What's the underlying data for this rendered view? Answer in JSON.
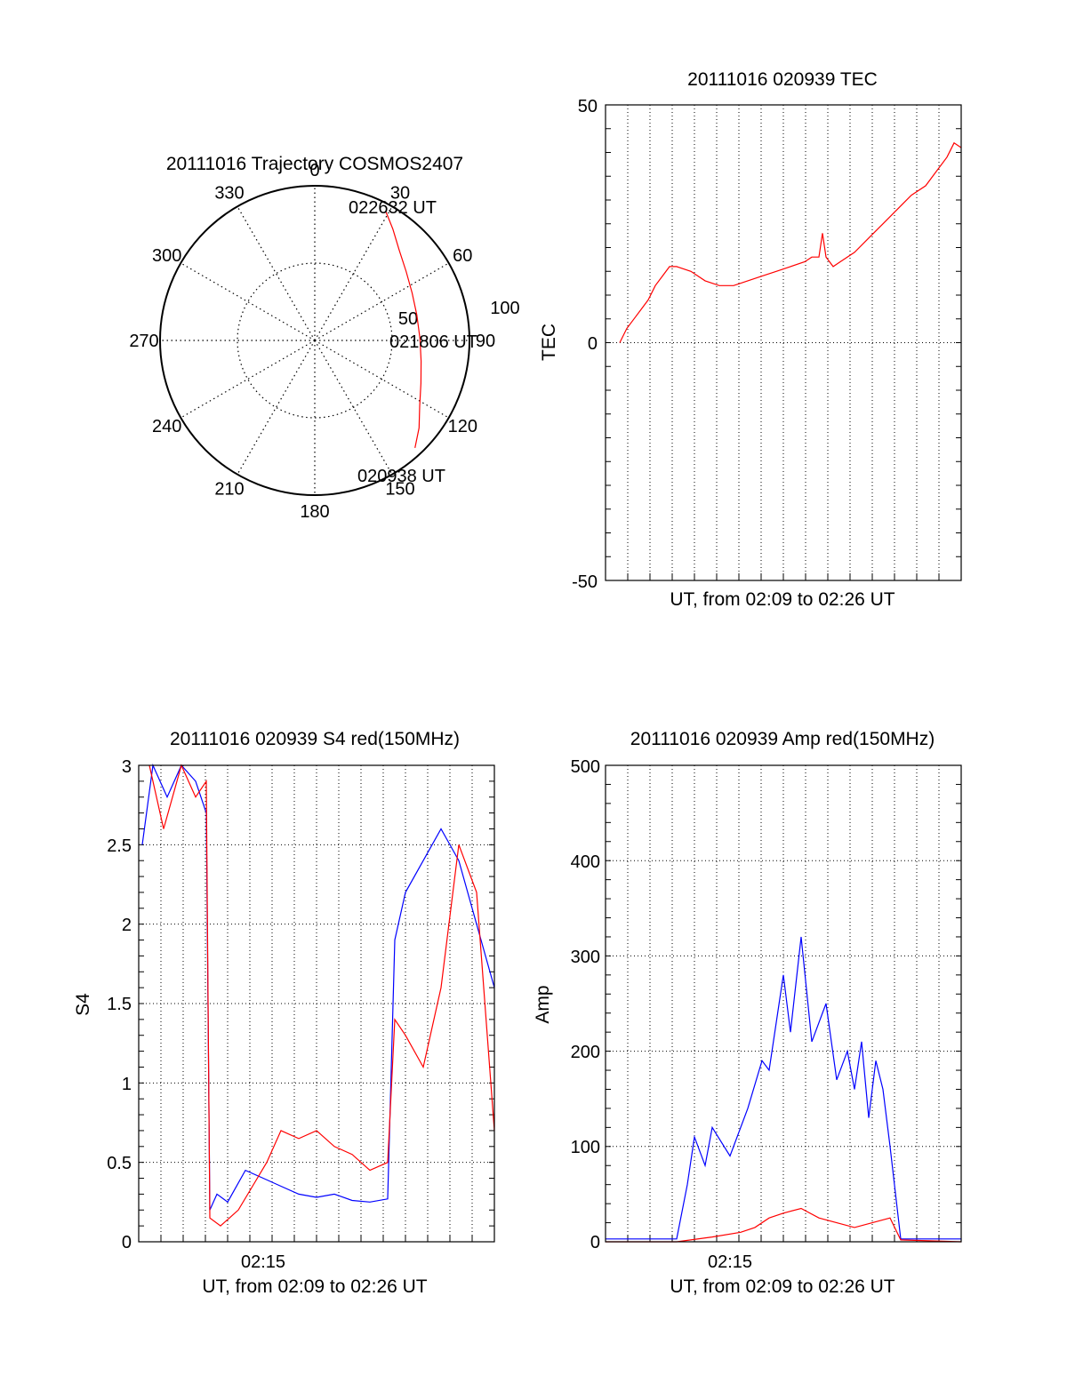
{
  "figure": {
    "background": "#ffffff",
    "colors": {
      "red": "#ff0000",
      "blue": "#0000ff",
      "axis": "#000000",
      "grid": "#000000"
    }
  },
  "chart_data": [
    {
      "id": "trajectory",
      "type": "scatter",
      "projection": "polar",
      "title": "20111016 Trajectory COSMOS2407",
      "azimuth_labels": [
        "0",
        "30",
        "60",
        "90",
        "120",
        "150",
        "180",
        "210",
        "240",
        "270",
        "300",
        "330"
      ],
      "radial_labels": [
        "50",
        "100"
      ],
      "r_max": 100,
      "azimuth_convention": "clockwise from top",
      "grid": true,
      "series": [
        {
          "color": "#ff0000",
          "points": [
            {
              "az": 29,
              "r": 95
            },
            {
              "az": 35,
              "r": 88
            },
            {
              "az": 43,
              "r": 80
            },
            {
              "az": 53,
              "r": 74
            },
            {
              "az": 64,
              "r": 70
            },
            {
              "az": 76,
              "r": 68
            },
            {
              "az": 89,
              "r": 68
            },
            {
              "az": 101,
              "r": 70
            },
            {
              "az": 112,
              "r": 74
            },
            {
              "az": 122,
              "r": 80
            },
            {
              "az": 130,
              "r": 88
            },
            {
              "az": 137,
              "r": 95
            }
          ]
        }
      ],
      "annotations": [
        "022632 UT",
        "021806 UT",
        "020938 UT"
      ]
    },
    {
      "id": "tec",
      "type": "line",
      "title": "20111016 020939 TEC",
      "xlabel": "UT, from 02:09 to 02:26 UT",
      "ylabel": "TEC",
      "xlim": [
        0,
        1
      ],
      "ylim": [
        -50,
        50
      ],
      "yticks": [
        "50",
        "0",
        "-50"
      ],
      "xticks": [],
      "grid": "vertical dotted",
      "series": [
        {
          "color": "#ff0000",
          "x": [
            0.04,
            0.06,
            0.08,
            0.1,
            0.12,
            0.14,
            0.16,
            0.18,
            0.2,
            0.24,
            0.28,
            0.32,
            0.36,
            0.4,
            0.44,
            0.48,
            0.52,
            0.56,
            0.58,
            0.6,
            0.61,
            0.62,
            0.64,
            0.66,
            0.7,
            0.74,
            0.78,
            0.82,
            0.86,
            0.9,
            0.93,
            0.96,
            0.98,
            1.0
          ],
          "y": [
            0,
            3,
            5,
            7,
            9,
            12,
            14,
            16,
            16,
            15,
            13,
            12,
            12,
            13,
            14,
            15,
            16,
            17,
            18,
            18,
            23,
            18,
            16,
            17,
            19,
            22,
            25,
            28,
            31,
            33,
            36,
            39,
            42,
            41
          ]
        }
      ]
    },
    {
      "id": "s4",
      "type": "line",
      "title": "20111016 020939 S4 red(150MHz)",
      "xlabel": "UT, from 02:09 to 02:26 UT",
      "ylabel": "S4",
      "xlim": [
        0,
        1
      ],
      "ylim": [
        0,
        3
      ],
      "yticks": [
        "0",
        "0.5",
        "1",
        "1.5",
        "2",
        "2.5",
        "3"
      ],
      "xticks": [
        "02:15"
      ],
      "grid": "dotted",
      "series": [
        {
          "color": "#0000ff",
          "x": [
            0.01,
            0.04,
            0.08,
            0.12,
            0.16,
            0.19,
            0.2,
            0.22,
            0.25,
            0.3,
            0.35,
            0.4,
            0.45,
            0.5,
            0.55,
            0.6,
            0.65,
            0.7,
            0.72,
            0.75,
            0.8,
            0.85,
            0.9,
            0.95,
            1.0
          ],
          "y": [
            2.5,
            3.0,
            2.8,
            3.0,
            2.9,
            2.7,
            0.2,
            0.3,
            0.25,
            0.45,
            0.4,
            0.35,
            0.3,
            0.28,
            0.3,
            0.26,
            0.25,
            0.27,
            1.9,
            2.2,
            2.4,
            2.6,
            2.4,
            2.0,
            1.6
          ]
        },
        {
          "color": "#ff0000",
          "x": [
            0.03,
            0.07,
            0.12,
            0.16,
            0.19,
            0.2,
            0.23,
            0.28,
            0.32,
            0.36,
            0.4,
            0.45,
            0.5,
            0.55,
            0.6,
            0.65,
            0.7,
            0.72,
            0.75,
            0.8,
            0.85,
            0.9,
            0.95,
            1.0
          ],
          "y": [
            3.0,
            2.6,
            3.0,
            2.8,
            2.9,
            0.15,
            0.1,
            0.2,
            0.35,
            0.5,
            0.7,
            0.65,
            0.7,
            0.6,
            0.55,
            0.45,
            0.5,
            1.4,
            1.3,
            1.1,
            1.6,
            2.5,
            2.2,
            0.7
          ]
        }
      ]
    },
    {
      "id": "amp",
      "type": "line",
      "title": "20111016 020939 Amp red(150MHz)",
      "xlabel": "UT, from 02:09 to 02:26 UT",
      "ylabel": "Amp",
      "xlim": [
        0,
        1
      ],
      "ylim": [
        0,
        500
      ],
      "yticks": [
        "0",
        "100",
        "200",
        "300",
        "400",
        "500"
      ],
      "xticks": [
        "02:15"
      ],
      "grid": "dotted",
      "series": [
        {
          "color": "#0000ff",
          "x": [
            0.0,
            0.2,
            0.23,
            0.25,
            0.28,
            0.3,
            0.35,
            0.4,
            0.44,
            0.46,
            0.5,
            0.52,
            0.55,
            0.58,
            0.6,
            0.62,
            0.65,
            0.68,
            0.7,
            0.72,
            0.74,
            0.76,
            0.78,
            0.8,
            0.83,
            1.0
          ],
          "y": [
            3,
            3,
            60,
            110,
            80,
            120,
            90,
            140,
            190,
            180,
            280,
            220,
            320,
            210,
            230,
            250,
            170,
            200,
            160,
            210,
            130,
            190,
            160,
            100,
            3,
            3
          ]
        },
        {
          "color": "#ff0000",
          "x": [
            0.0,
            0.2,
            0.3,
            0.38,
            0.42,
            0.46,
            0.5,
            0.55,
            0.6,
            0.65,
            0.7,
            0.75,
            0.8,
            0.83,
            1.0
          ],
          "y": [
            0,
            0,
            5,
            10,
            15,
            25,
            30,
            35,
            25,
            20,
            15,
            20,
            25,
            2,
            0
          ]
        }
      ]
    }
  ]
}
